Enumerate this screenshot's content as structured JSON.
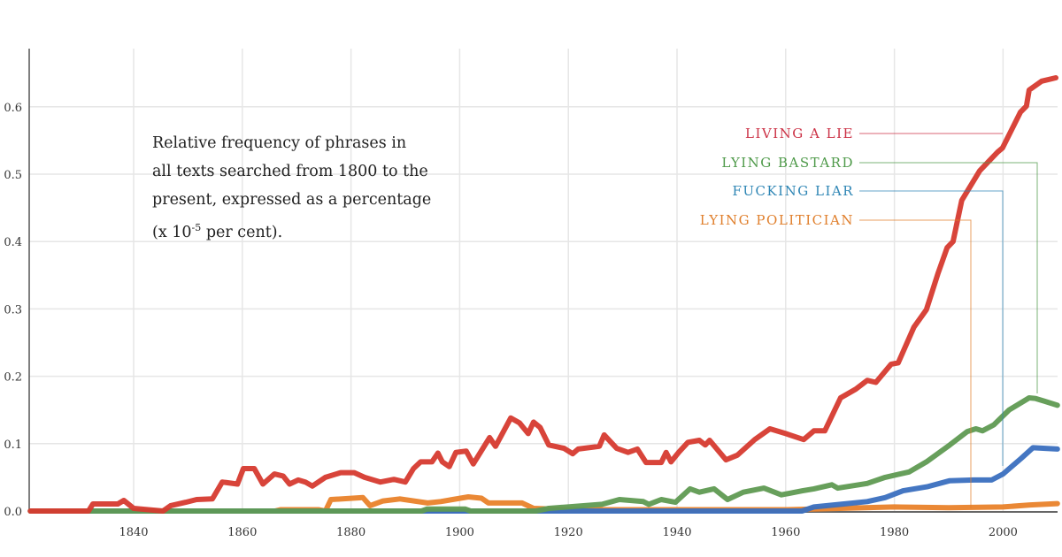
{
  "chart_data": {
    "type": "line",
    "title": "",
    "xlabel": "",
    "ylabel": "",
    "annotation": {
      "lines": [
        "Relative frequency of phrases in",
        "all texts searched from 1800 to the",
        "present, expressed as a percentage"
      ],
      "last_prefix": "(x 10",
      "last_sup": "-5",
      "last_suffix": " per cent)."
    },
    "xlim": [
      1821,
      2009.5
    ],
    "ylim": [
      0,
      0.6
    ],
    "x_ticks": [
      "1840",
      "1860",
      "1880",
      "1900",
      "1920",
      "1940",
      "1960",
      "1980",
      "2000"
    ],
    "y_ticks": [
      "0.0",
      "0.1",
      "0.2",
      "0.3",
      "0.4",
      "0.5",
      "0.6"
    ],
    "grid": true,
    "legend_placement": "top-right",
    "series": [
      {
        "name": "LIVING A LIE",
        "color": "#d63a2f",
        "label_color": "#cc3347",
        "points": [
          [
            1821,
            0
          ],
          [
            1831.7,
            0
          ],
          [
            1832.5,
            0.0105
          ],
          [
            1837.1,
            0.0105
          ],
          [
            1838.2,
            0.0157
          ],
          [
            1840,
            0.004
          ],
          [
            1845.4,
            0
          ],
          [
            1846.8,
            0.008
          ],
          [
            1849.6,
            0.013
          ],
          [
            1851.6,
            0.017
          ],
          [
            1854.5,
            0.018
          ],
          [
            1856.3,
            0.043
          ],
          [
            1859.1,
            0.04
          ],
          [
            1860.2,
            0.063
          ],
          [
            1862.2,
            0.063
          ],
          [
            1863.8,
            0.04
          ],
          [
            1865.9,
            0.055
          ],
          [
            1867.5,
            0.052
          ],
          [
            1868.7,
            0.04
          ],
          [
            1870.3,
            0.046
          ],
          [
            1871.6,
            0.043
          ],
          [
            1872.9,
            0.037
          ],
          [
            1875.3,
            0.05
          ],
          [
            1878.1,
            0.057
          ],
          [
            1880.6,
            0.057
          ],
          [
            1882.5,
            0.05
          ],
          [
            1885.4,
            0.043
          ],
          [
            1887.9,
            0.047
          ],
          [
            1890,
            0.043
          ],
          [
            1891.5,
            0.063
          ],
          [
            1892.8,
            0.073
          ],
          [
            1894.9,
            0.073
          ],
          [
            1896,
            0.086
          ],
          [
            1896.8,
            0.073
          ],
          [
            1898.1,
            0.066
          ],
          [
            1899.3,
            0.087
          ],
          [
            1901.2,
            0.089
          ],
          [
            1902.5,
            0.07
          ],
          [
            1905.5,
            0.109
          ],
          [
            1906.6,
            0.096
          ],
          [
            1909.4,
            0.138
          ],
          [
            1911,
            0.131
          ],
          [
            1912.6,
            0.115
          ],
          [
            1913.6,
            0.132
          ],
          [
            1914.8,
            0.124
          ],
          [
            1916.4,
            0.098
          ],
          [
            1919.2,
            0.093
          ],
          [
            1920.8,
            0.085
          ],
          [
            1921.8,
            0.092
          ],
          [
            1925.7,
            0.096
          ],
          [
            1926.6,
            0.113
          ],
          [
            1928.9,
            0.093
          ],
          [
            1931,
            0.087
          ],
          [
            1932.7,
            0.092
          ],
          [
            1934.3,
            0.072
          ],
          [
            1937.1,
            0.072
          ],
          [
            1938,
            0.087
          ],
          [
            1938.9,
            0.073
          ],
          [
            1940.3,
            0.087
          ],
          [
            1942,
            0.102
          ],
          [
            1944.1,
            0.105
          ],
          [
            1945.2,
            0.098
          ],
          [
            1946,
            0.105
          ],
          [
            1949,
            0.076
          ],
          [
            1951.1,
            0.083
          ],
          [
            1954.3,
            0.106
          ],
          [
            1957.1,
            0.122
          ],
          [
            1960,
            0.115
          ],
          [
            1963.3,
            0.106
          ],
          [
            1965.2,
            0.119
          ],
          [
            1967.2,
            0.119
          ],
          [
            1970.1,
            0.168
          ],
          [
            1972.9,
            0.181
          ],
          [
            1975,
            0.194
          ],
          [
            1976.6,
            0.191
          ],
          [
            1979.4,
            0.218
          ],
          [
            1980.7,
            0.22
          ],
          [
            1983.6,
            0.273
          ],
          [
            1985.9,
            0.299
          ],
          [
            1988,
            0.352
          ],
          [
            1989.7,
            0.391
          ],
          [
            1990.8,
            0.4
          ],
          [
            1992.4,
            0.461
          ],
          [
            1995.7,
            0.505
          ],
          [
            1999,
            0.533
          ],
          [
            1999.9,
            0.539
          ],
          [
            2003.2,
            0.592
          ],
          [
            2004.3,
            0.601
          ],
          [
            2004.8,
            0.625
          ],
          [
            2007.1,
            0.638
          ],
          [
            2009.7,
            0.643
          ]
        ]
      },
      {
        "name": "LYING BASTARD",
        "color": "#5f9a52",
        "label_color": "#4f9a4a",
        "points": [
          [
            1821,
            0
          ],
          [
            1893,
            0
          ],
          [
            1894,
            0.003
          ],
          [
            1901,
            0.003
          ],
          [
            1902,
            0
          ],
          [
            1914,
            0
          ],
          [
            1916.4,
            0.004
          ],
          [
            1926.2,
            0.01
          ],
          [
            1929.4,
            0.017
          ],
          [
            1933.8,
            0.014
          ],
          [
            1934.8,
            0.01
          ],
          [
            1937.1,
            0.017
          ],
          [
            1939.7,
            0.013
          ],
          [
            1942.4,
            0.033
          ],
          [
            1944.1,
            0.028
          ],
          [
            1946.8,
            0.033
          ],
          [
            1949.3,
            0.017
          ],
          [
            1952.2,
            0.028
          ],
          [
            1956,
            0.034
          ],
          [
            1959.2,
            0.024
          ],
          [
            1963.1,
            0.03
          ],
          [
            1965.2,
            0.033
          ],
          [
            1968.5,
            0.039
          ],
          [
            1969.6,
            0.034
          ],
          [
            1975,
            0.041
          ],
          [
            1978.3,
            0.05
          ],
          [
            1982.7,
            0.058
          ],
          [
            1985.9,
            0.073
          ],
          [
            1990.2,
            0.098
          ],
          [
            1993.4,
            0.118
          ],
          [
            1995,
            0.122
          ],
          [
            1996.2,
            0.119
          ],
          [
            1998.3,
            0.128
          ],
          [
            2001.1,
            0.15
          ],
          [
            2004.8,
            0.168
          ],
          [
            2006,
            0.167
          ],
          [
            2007.6,
            0.163
          ],
          [
            2010,
            0.157
          ]
        ]
      },
      {
        "name": "FUCKING LIAR",
        "color": "#3a6fbf",
        "label_color": "#2f86b5",
        "points": [
          [
            1821,
            0
          ],
          [
            1963,
            0
          ],
          [
            1965.2,
            0.006
          ],
          [
            1970.1,
            0.01
          ],
          [
            1975,
            0.014
          ],
          [
            1978.3,
            0.02
          ],
          [
            1981.6,
            0.03
          ],
          [
            1986,
            0.036
          ],
          [
            1990.2,
            0.045
          ],
          [
            1994.6,
            0.046
          ],
          [
            1997.9,
            0.046
          ],
          [
            2000,
            0.055
          ],
          [
            2003.3,
            0.078
          ],
          [
            2005.5,
            0.094
          ],
          [
            2010,
            0.092
          ]
        ]
      },
      {
        "name": "LYING POLITICIAN",
        "color": "#e9822a",
        "label_color": "#e07f2c",
        "points": [
          [
            1821,
            0
          ],
          [
            1866,
            0
          ],
          [
            1867,
            0.002
          ],
          [
            1874,
            0.002
          ],
          [
            1875.3,
            0
          ],
          [
            1876.3,
            0.017
          ],
          [
            1882.2,
            0.02
          ],
          [
            1883.5,
            0.008
          ],
          [
            1885.9,
            0.015
          ],
          [
            1889,
            0.018
          ],
          [
            1894.1,
            0.012
          ],
          [
            1896.5,
            0.014
          ],
          [
            1901.6,
            0.021
          ],
          [
            1904,
            0.019
          ],
          [
            1905.3,
            0.012
          ],
          [
            1911.5,
            0.012
          ],
          [
            1913.6,
            0.004
          ],
          [
            1920,
            0.002
          ],
          [
            1960,
            0.002
          ],
          [
            1970,
            0.004
          ],
          [
            1980,
            0.006
          ],
          [
            1990,
            0.005
          ],
          [
            2000,
            0.006
          ],
          [
            2005,
            0.009
          ],
          [
            2010,
            0.011
          ]
        ]
      }
    ]
  }
}
